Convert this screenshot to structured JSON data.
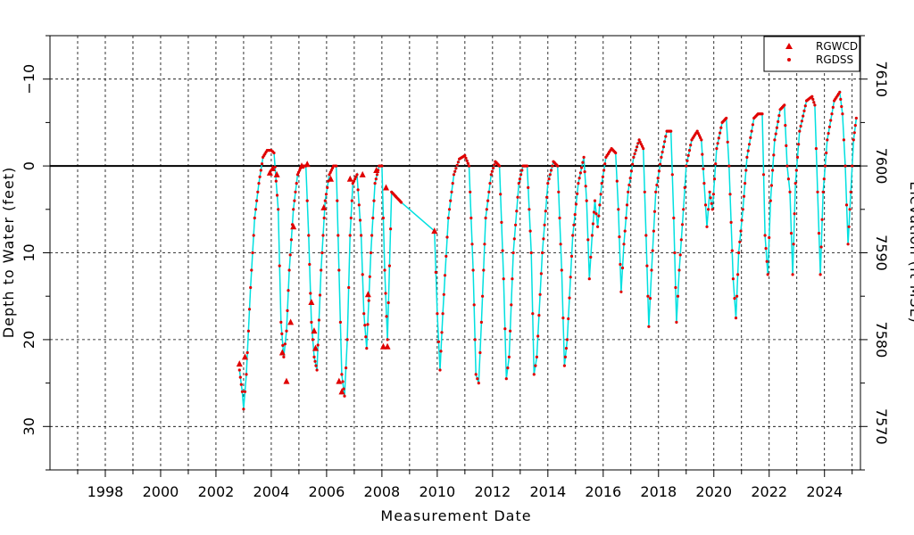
{
  "chart_data": {
    "type": "line",
    "xlabel": "Measurement Date",
    "ylabel": "Depth to Water (feet)",
    "y2label": "Elevation (ft MSL)",
    "xlim": [
      1996.0,
      2025.3
    ],
    "ylim": [
      35,
      -15
    ],
    "y_inverted": true,
    "x_ticks": [
      "1998",
      "2000",
      "2002",
      "2004",
      "2006",
      "2008",
      "2010",
      "2012",
      "2014",
      "2016",
      "2018",
      "2020",
      "2022",
      "2024"
    ],
    "y_ticks": [
      "−10",
      "0",
      "10",
      "20",
      "30"
    ],
    "y2_ticks": [
      "7610",
      "7600",
      "7590",
      "7580",
      "7570"
    ],
    "reference_line_depth": 0,
    "grid": true,
    "legend_position": "top-right",
    "colors": {
      "markers": "#e00000",
      "line": "#00e0e0",
      "frame": "#000000"
    },
    "series": [
      {
        "name": "RGWCD",
        "marker": "triangle",
        "points": [
          [
            2002.85,
            22.8
          ],
          [
            2003.05,
            22.0
          ],
          [
            2003.95,
            0.8
          ],
          [
            2004.05,
            0.3
          ],
          [
            2004.2,
            1.0
          ],
          [
            2004.4,
            21.5
          ],
          [
            2004.55,
            24.8
          ],
          [
            2004.7,
            18.0
          ],
          [
            2004.8,
            7.0
          ],
          [
            2005.1,
            0.0
          ],
          [
            2005.3,
            -0.2
          ],
          [
            2005.45,
            15.7
          ],
          [
            2005.55,
            19.0
          ],
          [
            2005.6,
            21.0
          ],
          [
            2005.9,
            4.8
          ],
          [
            2006.15,
            1.5
          ],
          [
            2006.45,
            24.8
          ],
          [
            2006.55,
            26.0
          ],
          [
            2006.85,
            1.5
          ],
          [
            2007.3,
            1.0
          ],
          [
            2007.5,
            14.8
          ],
          [
            2007.8,
            0.5
          ],
          [
            2008.05,
            20.8
          ],
          [
            2008.2,
            20.8
          ],
          [
            2008.15,
            2.5
          ],
          [
            2009.9,
            7.5
          ]
        ]
      },
      {
        "name": "RGDSS",
        "marker": "dot",
        "points": [
          [
            2002.85,
            23.5
          ],
          [
            2002.95,
            26.0
          ],
          [
            2003.0,
            28.0
          ],
          [
            2003.1,
            24.0
          ],
          [
            2003.25,
            14.0
          ],
          [
            2003.4,
            6.0
          ],
          [
            2003.55,
            2.0
          ],
          [
            2003.7,
            -1.0
          ],
          [
            2003.85,
            -1.8
          ],
          [
            2004.0,
            -1.8
          ],
          [
            2004.1,
            -1.5
          ],
          [
            2004.25,
            5.0
          ],
          [
            2004.35,
            18.0
          ],
          [
            2004.45,
            22.0
          ],
          [
            2004.55,
            19.0
          ],
          [
            2004.65,
            12.0
          ],
          [
            2004.8,
            5.0
          ],
          [
            2004.95,
            1.0
          ],
          [
            2005.1,
            0.0
          ],
          [
            2005.25,
            0.0
          ],
          [
            2005.35,
            8.0
          ],
          [
            2005.45,
            18.0
          ],
          [
            2005.55,
            22.0
          ],
          [
            2005.65,
            23.5
          ],
          [
            2005.8,
            12.0
          ],
          [
            2005.95,
            4.0
          ],
          [
            2006.1,
            1.0
          ],
          [
            2006.25,
            0.0
          ],
          [
            2006.35,
            0.0
          ],
          [
            2006.45,
            12.0
          ],
          [
            2006.55,
            24.0
          ],
          [
            2006.65,
            26.5
          ],
          [
            2006.75,
            20.0
          ],
          [
            2006.85,
            8.0
          ],
          [
            2006.95,
            2.0
          ],
          [
            2007.1,
            1.0
          ],
          [
            2007.25,
            8.0
          ],
          [
            2007.35,
            17.0
          ],
          [
            2007.45,
            21.0
          ],
          [
            2007.6,
            10.0
          ],
          [
            2007.75,
            2.0
          ],
          [
            2007.9,
            0.0
          ],
          [
            2008.0,
            0.0
          ],
          [
            2008.1,
            12.0
          ],
          [
            2008.2,
            20.0
          ],
          [
            2008.35,
            3.0
          ],
          [
            2008.7,
            4.2
          ],
          [
            2009.9,
            7.5
          ],
          [
            2010.0,
            17.0
          ],
          [
            2010.1,
            23.5
          ],
          [
            2010.2,
            17.0
          ],
          [
            2010.4,
            6.0
          ],
          [
            2010.6,
            1.0
          ],
          [
            2010.8,
            -0.8
          ],
          [
            2011.0,
            -1.2
          ],
          [
            2011.15,
            0.0
          ],
          [
            2011.3,
            12.0
          ],
          [
            2011.4,
            24.0
          ],
          [
            2011.5,
            25.0
          ],
          [
            2011.6,
            18.0
          ],
          [
            2011.75,
            6.0
          ],
          [
            2011.95,
            1.0
          ],
          [
            2012.1,
            -0.5
          ],
          [
            2012.25,
            0.0
          ],
          [
            2012.4,
            13.0
          ],
          [
            2012.5,
            24.5
          ],
          [
            2012.6,
            22.0
          ],
          [
            2012.75,
            10.0
          ],
          [
            2012.95,
            2.0
          ],
          [
            2013.1,
            0.0
          ],
          [
            2013.25,
            0.0
          ],
          [
            2013.4,
            10.0
          ],
          [
            2013.5,
            24.0
          ],
          [
            2013.6,
            22.0
          ],
          [
            2013.8,
            10.0
          ],
          [
            2014.0,
            2.0
          ],
          [
            2014.2,
            -0.5
          ],
          [
            2014.35,
            0.0
          ],
          [
            2014.5,
            12.0
          ],
          [
            2014.6,
            23.0
          ],
          [
            2014.7,
            20.0
          ],
          [
            2014.9,
            8.0
          ],
          [
            2015.1,
            2.0
          ],
          [
            2015.3,
            -1.0
          ],
          [
            2015.4,
            4.0
          ],
          [
            2015.5,
            13.0
          ],
          [
            2015.6,
            8.0
          ],
          [
            2015.7,
            4.0
          ],
          [
            2015.8,
            7.0
          ],
          [
            2015.95,
            2.0
          ],
          [
            2016.1,
            -1.0
          ],
          [
            2016.3,
            -2.0
          ],
          [
            2016.45,
            -1.5
          ],
          [
            2016.55,
            5.0
          ],
          [
            2016.65,
            14.5
          ],
          [
            2016.75,
            9.0
          ],
          [
            2016.9,
            3.0
          ],
          [
            2017.1,
            -1.0
          ],
          [
            2017.3,
            -3.0
          ],
          [
            2017.45,
            -2.0
          ],
          [
            2017.55,
            8.0
          ],
          [
            2017.65,
            18.5
          ],
          [
            2017.75,
            12.0
          ],
          [
            2017.9,
            3.0
          ],
          [
            2018.1,
            -1.0
          ],
          [
            2018.3,
            -4.0
          ],
          [
            2018.45,
            -4.0
          ],
          [
            2018.55,
            6.0
          ],
          [
            2018.65,
            18.0
          ],
          [
            2018.75,
            12.0
          ],
          [
            2018.9,
            5.0
          ],
          [
            2019.0,
            0.0
          ],
          [
            2019.2,
            -3.0
          ],
          [
            2019.4,
            -4.0
          ],
          [
            2019.55,
            -3.0
          ],
          [
            2019.65,
            2.0
          ],
          [
            2019.75,
            7.0
          ],
          [
            2019.85,
            3.0
          ],
          [
            2019.95,
            5.0
          ],
          [
            2020.1,
            -2.0
          ],
          [
            2020.3,
            -5.0
          ],
          [
            2020.45,
            -5.5
          ],
          [
            2020.55,
            0.0
          ],
          [
            2020.7,
            13.0
          ],
          [
            2020.8,
            17.5
          ],
          [
            2020.9,
            10.0
          ],
          [
            2021.05,
            5.0
          ],
          [
            2021.2,
            -1.0
          ],
          [
            2021.45,
            -5.5
          ],
          [
            2021.6,
            -6.0
          ],
          [
            2021.75,
            -6.0
          ],
          [
            2021.85,
            8.0
          ],
          [
            2021.95,
            12.5
          ],
          [
            2022.05,
            4.0
          ],
          [
            2022.2,
            -3.0
          ],
          [
            2022.4,
            -6.5
          ],
          [
            2022.55,
            -7.0
          ],
          [
            2022.65,
            0.0
          ],
          [
            2022.75,
            3.0
          ],
          [
            2022.85,
            12.5
          ],
          [
            2022.95,
            2.0
          ],
          [
            2023.1,
            -4.0
          ],
          [
            2023.35,
            -7.5
          ],
          [
            2023.55,
            -8.0
          ],
          [
            2023.65,
            -7.0
          ],
          [
            2023.75,
            3.0
          ],
          [
            2023.85,
            12.5
          ],
          [
            2023.95,
            3.0
          ],
          [
            2024.1,
            -3.0
          ],
          [
            2024.35,
            -7.5
          ],
          [
            2024.55,
            -8.5
          ],
          [
            2024.65,
            -6.0
          ],
          [
            2024.75,
            0.0
          ],
          [
            2024.85,
            9.0
          ],
          [
            2024.95,
            3.0
          ],
          [
            2025.05,
            -3.0
          ],
          [
            2025.15,
            -5.5
          ]
        ]
      }
    ]
  }
}
